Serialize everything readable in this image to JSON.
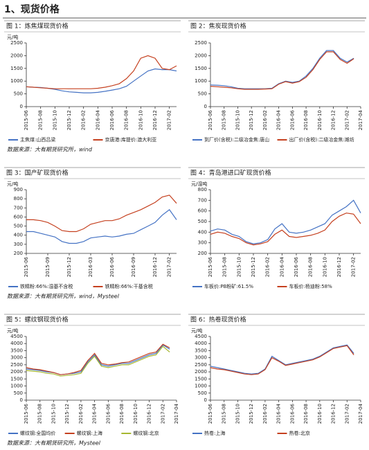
{
  "header": {
    "title": "1、现货价格"
  },
  "sources": [
    "数据来源：大有期货研究所，wind",
    "数据来源：大有期货研究所，wind，Mysteel",
    "数据来源：大有期货研究所，Mysteel"
  ],
  "chart_data": [
    {
      "type": "line",
      "title": "图 1：炼焦煤现货价格",
      "y_label": "元/吨",
      "categories": [
        "2015-06",
        null,
        "2015-08",
        null,
        "2015-10",
        null,
        "2015-12",
        null,
        "2016-02",
        null,
        "2016-04",
        null,
        "2016-06",
        null,
        "2016-08",
        null,
        "2016-10",
        null,
        "2016-12",
        null,
        "2017-02",
        null
      ],
      "ylim": [
        0,
        2500
      ],
      "yticks": [
        0,
        500,
        1000,
        1500,
        2000,
        2500
      ],
      "series": [
        {
          "name": "主焦煤:山西吕梁",
          "color": "#4472c4",
          "values": [
            780,
            760,
            750,
            720,
            680,
            620,
            580,
            560,
            540,
            540,
            560,
            600,
            650,
            700,
            800,
            1000,
            1200,
            1400,
            1480,
            1450,
            1450,
            1400
          ]
        },
        {
          "name": "京唐港:库提价:澳大利亚",
          "color": "#c5401f",
          "values": [
            780,
            760,
            740,
            720,
            700,
            700,
            700,
            700,
            700,
            700,
            720,
            760,
            820,
            900,
            1100,
            1400,
            1900,
            2000,
            1900,
            1500,
            1450,
            1600
          ]
        }
      ]
    },
    {
      "type": "line",
      "title": "图 2：焦炭现货价格",
      "y_label": "",
      "categories": [
        "2015-06",
        null,
        "2015-08",
        null,
        "2015-10",
        null,
        "2015-12",
        null,
        "2016-02",
        null,
        "2016-04",
        null,
        "2016-06",
        null,
        "2016-08",
        null,
        "2016-10",
        null,
        "2016-12",
        null,
        "2017-02",
        null,
        "2017-04"
      ],
      "ylim": [
        0,
        2500
      ],
      "yticks": [
        0,
        500,
        1000,
        1500,
        2000,
        2500
      ],
      "series": [
        {
          "name": "到厂价(含税):二级冶金焦:唐山",
          "color": "#4472c4",
          "values": [
            850,
            840,
            820,
            780,
            720,
            700,
            700,
            700,
            700,
            720,
            900,
            1000,
            950,
            1000,
            1200,
            1500,
            1900,
            2200,
            2200,
            1900,
            1750,
            1900,
            null
          ]
        },
        {
          "name": "出厂价(含税):二级冶金焦:潍坊",
          "color": "#c5401f",
          "values": [
            800,
            780,
            760,
            740,
            700,
            680,
            680,
            680,
            690,
            700,
            880,
            980,
            920,
            980,
            1150,
            1450,
            1850,
            2150,
            2150,
            1850,
            1700,
            1880,
            null
          ]
        }
      ]
    },
    {
      "type": "line",
      "title": "图 3：国产矿现货价格",
      "y_label": "元/吨",
      "categories": [
        "2015-06",
        null,
        null,
        "2015-09",
        null,
        null,
        "2015-12",
        null,
        null,
        "2016-03",
        null,
        null,
        "2016-06",
        null,
        null,
        "2016-09",
        null,
        null,
        "2016-12",
        null,
        "2017-02",
        null
      ],
      "ylim": [
        200,
        900
      ],
      "yticks": [
        200,
        300,
        400,
        500,
        600,
        700,
        800,
        900
      ],
      "series": [
        {
          "name": "铁精粉:66%:湿基不含税",
          "color": "#4472c4",
          "values": [
            440,
            440,
            420,
            400,
            380,
            330,
            310,
            310,
            330,
            370,
            380,
            390,
            380,
            390,
            410,
            420,
            460,
            500,
            540,
            620,
            680,
            570
          ]
        },
        {
          "name": "铁精粉:66%:干基含税",
          "color": "#c5401f",
          "values": [
            570,
            570,
            560,
            540,
            500,
            450,
            440,
            440,
            470,
            520,
            540,
            560,
            560,
            580,
            620,
            650,
            680,
            720,
            760,
            820,
            840,
            750
          ]
        }
      ]
    },
    {
      "type": "line",
      "title": "图 4：青岛港进口矿现货价格",
      "y_label": "元/湿吨",
      "categories": [
        "2015-06",
        null,
        "2015-08",
        null,
        "2015-10",
        null,
        "2015-12",
        null,
        "2016-02",
        null,
        "2016-04",
        null,
        "2016-06",
        null,
        "2016-08",
        null,
        "2016-10",
        null,
        "2016-12",
        null,
        "2017-02",
        null
      ],
      "ylim": [
        200,
        800
      ],
      "yticks": [
        200,
        300,
        400,
        500,
        600,
        700,
        800
      ],
      "series": [
        {
          "name": "车板价:PB粉矿:61.5%",
          "color": "#4472c4",
          "values": [
            410,
            430,
            420,
            380,
            360,
            310,
            290,
            300,
            330,
            430,
            480,
            400,
            390,
            400,
            420,
            450,
            480,
            560,
            600,
            640,
            700,
            580
          ]
        },
        {
          "name": "车板价:杨迪粉:58%",
          "color": "#c5401f",
          "values": [
            380,
            400,
            390,
            360,
            340,
            300,
            280,
            290,
            310,
            380,
            420,
            360,
            350,
            360,
            370,
            390,
            420,
            500,
            550,
            580,
            570,
            480
          ]
        }
      ]
    },
    {
      "type": "line",
      "title": "图 5：螺纹钢现货价格",
      "y_label": "元/吨",
      "categories": [
        "2015-06",
        null,
        "2015-08",
        null,
        "2015-10",
        null,
        "2015-12",
        null,
        "2016-02",
        null,
        "2016-04",
        null,
        "2016-06",
        null,
        "2016-08",
        null,
        "2016-10",
        null,
        "2016-12",
        null,
        "2017-02",
        null,
        "2017-04"
      ],
      "ylim": [
        0,
        4500
      ],
      "yticks": [
        0,
        500,
        1000,
        1500,
        2000,
        2500,
        3000,
        3500,
        4000,
        4500
      ],
      "series": [
        {
          "name": "螺纹钢:全国均价",
          "color": "#4472c4",
          "values": [
            2200,
            2150,
            2100,
            2000,
            1950,
            1800,
            1850,
            1900,
            2000,
            2700,
            3200,
            2500,
            2400,
            2500,
            2600,
            2600,
            2800,
            3000,
            3200,
            3300,
            3900,
            3600,
            null
          ]
        },
        {
          "name": "螺纹钢:上海",
          "color": "#c5401f",
          "values": [
            2300,
            2200,
            2150,
            2050,
            1950,
            1800,
            1850,
            1950,
            2100,
            2800,
            3300,
            2600,
            2500,
            2550,
            2650,
            2700,
            2900,
            3100,
            3300,
            3400,
            3950,
            3700,
            null
          ]
        },
        {
          "name": "螺纹钢:北京",
          "color": "#a6b730",
          "values": [
            2100,
            2050,
            2000,
            1900,
            1850,
            1700,
            1750,
            1800,
            1900,
            2600,
            3100,
            2400,
            2300,
            2400,
            2500,
            2500,
            2700,
            2900,
            3100,
            3200,
            3800,
            3400,
            null
          ]
        }
      ]
    },
    {
      "type": "line",
      "title": "图 6：热卷现货价格",
      "y_label": "元/吨",
      "categories": [
        "2015-06",
        null,
        "2015-08",
        null,
        "2015-10",
        null,
        "2015-12",
        null,
        "2016-02",
        null,
        "2016-04",
        null,
        "2016-06",
        null,
        "2016-08",
        null,
        "2016-10",
        null,
        "2016-12",
        null,
        "2017-02",
        null,
        "2017-04"
      ],
      "ylim": [
        0,
        4500
      ],
      "yticks": [
        0,
        500,
        1000,
        1500,
        2000,
        2500,
        3000,
        3500,
        4000,
        4500
      ],
      "series": [
        {
          "name": "热卷:上海",
          "color": "#4472c4",
          "values": [
            2400,
            2300,
            2200,
            2100,
            2000,
            1900,
            1850,
            1900,
            2200,
            3100,
            2800,
            2500,
            2600,
            2700,
            2800,
            2900,
            3100,
            3400,
            3700,
            3800,
            3900,
            3300,
            null
          ]
        },
        {
          "name": "热卷:北京",
          "color": "#c5401f",
          "values": [
            2300,
            2200,
            2150,
            2050,
            1950,
            1850,
            1800,
            1850,
            2150,
            3000,
            2750,
            2450,
            2550,
            2650,
            2750,
            2850,
            3050,
            3350,
            3650,
            3750,
            3850,
            3200,
            null
          ]
        }
      ]
    }
  ]
}
